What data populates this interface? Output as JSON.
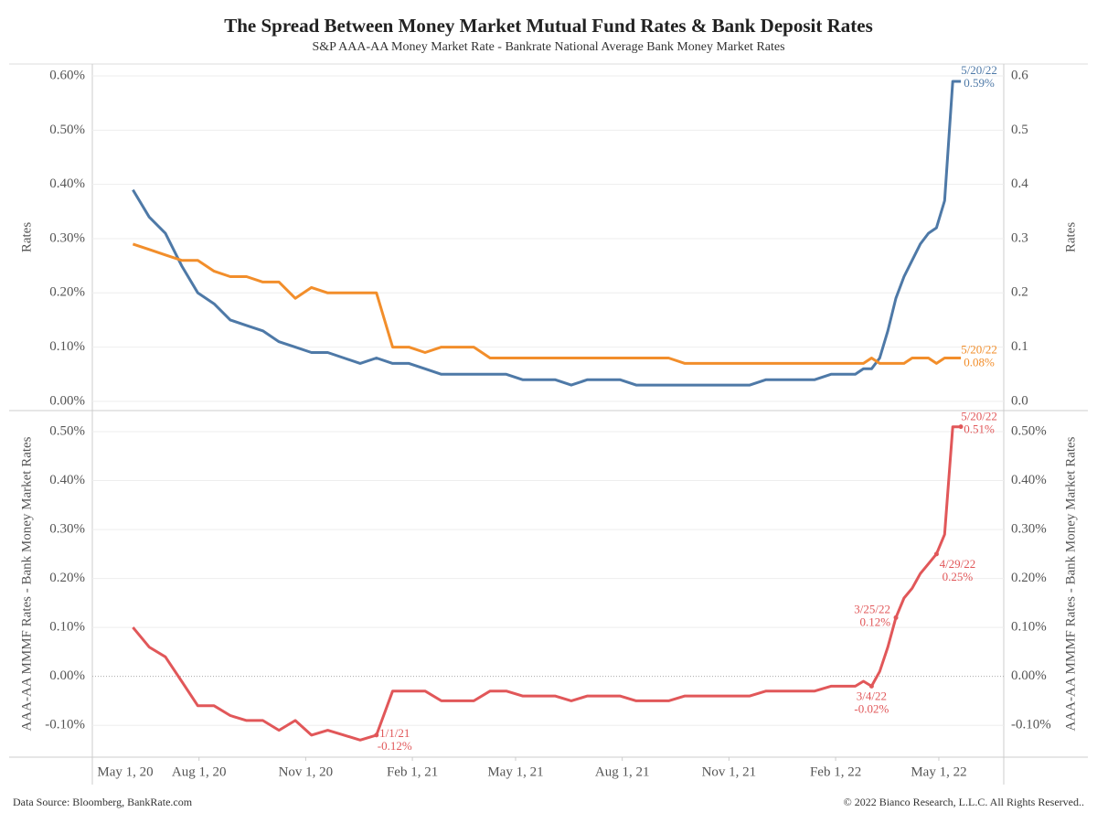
{
  "title": "The Spread Between Money Market Mutual Fund Rates & Bank Deposit Rates",
  "subtitle": "S&P AAA-AA Money Market Rate - Bankrate National Average Bank Money Market Rates",
  "source": "Data Source: Bloomberg, BankRate.com",
  "copyright": "© 2022 Bianco Research, L.L.C. All Rights Reserved..",
  "chart_data": [
    {
      "type": "line",
      "y_label": "Rates",
      "y2_label": "Rates",
      "x": [
        "2020-06-05",
        "2020-06-19",
        "2020-07-03",
        "2020-07-17",
        "2020-07-31",
        "2020-08-14",
        "2020-08-28",
        "2020-09-11",
        "2020-09-25",
        "2020-10-09",
        "2020-10-23",
        "2020-11-06",
        "2020-11-20",
        "2020-12-04",
        "2020-12-18",
        "2021-01-01",
        "2021-01-15",
        "2021-01-29",
        "2021-02-12",
        "2021-02-26",
        "2021-03-12",
        "2021-03-26",
        "2021-04-09",
        "2021-04-23",
        "2021-05-07",
        "2021-05-21",
        "2021-06-04",
        "2021-06-18",
        "2021-07-02",
        "2021-07-16",
        "2021-07-30",
        "2021-08-13",
        "2021-08-27",
        "2021-09-10",
        "2021-09-24",
        "2021-10-08",
        "2021-10-22",
        "2021-11-05",
        "2021-11-19",
        "2021-12-03",
        "2021-12-17",
        "2021-12-31",
        "2022-01-14",
        "2022-01-28",
        "2022-02-04",
        "2022-02-11",
        "2022-02-18",
        "2022-02-25",
        "2022-03-04",
        "2022-03-11",
        "2022-03-18",
        "2022-03-25",
        "2022-04-01",
        "2022-04-08",
        "2022-04-15",
        "2022-04-22",
        "2022-04-29",
        "2022-05-06",
        "2022-05-13",
        "2022-05-20"
      ],
      "xlim": [
        "2020-05-01",
        "2022-06-26"
      ],
      "ylim": [
        -0.017,
        0.622
      ],
      "yticks": [
        {
          "value": 0,
          "label": "0.00%"
        },
        {
          "value": 0.1,
          "label": "0.10%"
        },
        {
          "value": 0.2,
          "label": "0.20%"
        },
        {
          "value": 0.3,
          "label": "0.30%"
        },
        {
          "value": 0.4,
          "label": "0.40%"
        },
        {
          "value": 0.5,
          "label": "0.50%"
        },
        {
          "value": 0.6,
          "label": "0.60%"
        }
      ],
      "y2lim": [
        -0.017,
        0.622
      ],
      "y2ticks": [
        {
          "value": 0,
          "label": "0.0"
        },
        0.1,
        0.2,
        0.3,
        0.4,
        0.5,
        0.6
      ],
      "grid": true,
      "series": [
        {
          "color": "#4e79a7",
          "values": [
            0.39,
            0.34,
            0.31,
            0.25,
            0.2,
            0.18,
            0.15,
            0.14,
            0.13,
            0.11,
            0.1,
            0.09,
            0.09,
            0.08,
            0.07,
            0.08,
            0.07,
            0.07,
            0.06,
            0.05,
            0.05,
            0.05,
            0.05,
            0.05,
            0.04,
            0.04,
            0.04,
            0.03,
            0.04,
            0.04,
            0.04,
            0.03,
            0.03,
            0.03,
            0.03,
            0.03,
            0.03,
            0.03,
            0.03,
            0.04,
            0.04,
            0.04,
            0.04,
            0.05,
            0.05,
            0.05,
            0.05,
            0.06,
            0.06,
            0.08,
            0.13,
            0.19,
            0.23,
            0.26,
            0.29,
            0.31,
            0.32,
            0.37,
            0.59,
            0.59
          ],
          "annotations": [
            {
              "x": "2022-05-20",
              "label": "5/20/22",
              "value_label": "0.59%"
            }
          ]
        },
        {
          "color": "#f28e2b",
          "values": [
            0.29,
            0.28,
            0.27,
            0.26,
            0.26,
            0.24,
            0.23,
            0.23,
            0.22,
            0.22,
            0.19,
            0.21,
            0.2,
            0.2,
            0.2,
            0.2,
            0.1,
            0.1,
            0.09,
            0.1,
            0.1,
            0.1,
            0.08,
            0.08,
            0.08,
            0.08,
            0.08,
            0.08,
            0.08,
            0.08,
            0.08,
            0.08,
            0.08,
            0.08,
            0.07,
            0.07,
            0.07,
            0.07,
            0.07,
            0.07,
            0.07,
            0.07,
            0.07,
            0.07,
            0.07,
            0.07,
            0.07,
            0.07,
            0.08,
            0.07,
            0.07,
            0.07,
            0.07,
            0.08,
            0.08,
            0.08,
            0.07,
            0.08,
            0.08,
            0.08
          ],
          "annotations": [
            {
              "x": "2022-05-20",
              "label": "5/20/22",
              "value_label": "0.08%"
            }
          ]
        }
      ]
    },
    {
      "type": "line",
      "y_label": "AAA-AA MMMF Rates - Bank Money Market Rates",
      "y2_label": "AAA-AA MMMF Rates - Bank Money Market Rates",
      "x": [
        "2020-06-05",
        "2020-06-19",
        "2020-07-03",
        "2020-07-17",
        "2020-07-31",
        "2020-08-14",
        "2020-08-28",
        "2020-09-11",
        "2020-09-25",
        "2020-10-09",
        "2020-10-23",
        "2020-11-06",
        "2020-11-20",
        "2020-12-04",
        "2020-12-18",
        "2021-01-01",
        "2021-01-15",
        "2021-01-29",
        "2021-02-12",
        "2021-02-26",
        "2021-03-12",
        "2021-03-26",
        "2021-04-09",
        "2021-04-23",
        "2021-05-07",
        "2021-05-21",
        "2021-06-04",
        "2021-06-18",
        "2021-07-02",
        "2021-07-16",
        "2021-07-30",
        "2021-08-13",
        "2021-08-27",
        "2021-09-10",
        "2021-09-24",
        "2021-10-08",
        "2021-10-22",
        "2021-11-05",
        "2021-11-19",
        "2021-12-03",
        "2021-12-17",
        "2021-12-31",
        "2022-01-14",
        "2022-01-28",
        "2022-02-04",
        "2022-02-11",
        "2022-02-18",
        "2022-02-25",
        "2022-03-04",
        "2022-03-11",
        "2022-03-18",
        "2022-03-25",
        "2022-04-01",
        "2022-04-08",
        "2022-04-15",
        "2022-04-22",
        "2022-04-29",
        "2022-05-06",
        "2022-05-13",
        "2022-05-20"
      ],
      "xlim": [
        "2020-05-01",
        "2022-06-26"
      ],
      "xticks": [
        {
          "value": "2020-05-01",
          "label": "May 1, 20"
        },
        {
          "value": "2020-08-01",
          "label": "Aug 1, 20"
        },
        {
          "value": "2020-11-01",
          "label": "Nov 1, 20"
        },
        {
          "value": "2021-02-01",
          "label": "Feb 1, 21"
        },
        {
          "value": "2021-05-01",
          "label": "May 1, 21"
        },
        {
          "value": "2021-08-01",
          "label": "Aug 1, 21"
        },
        {
          "value": "2021-11-01",
          "label": "Nov 1, 21"
        },
        {
          "value": "2022-02-01",
          "label": "Feb 1, 22"
        },
        {
          "value": "2022-05-01",
          "label": "May 1, 22"
        }
      ],
      "ylim": [
        -0.165,
        0.543
      ],
      "yticks": [
        {
          "value": -0.1,
          "label": "-0.10%"
        },
        {
          "value": 0,
          "label": "0.00%"
        },
        {
          "value": 0.1,
          "label": "0.10%"
        },
        {
          "value": 0.2,
          "label": "0.20%"
        },
        {
          "value": 0.3,
          "label": "0.30%"
        },
        {
          "value": 0.4,
          "label": "0.40%"
        },
        {
          "value": 0.5,
          "label": "0.50%"
        }
      ],
      "y2lim": [
        -0.165,
        0.543
      ],
      "y2ticks": [
        {
          "value": -0.1,
          "label": "-0.10%"
        },
        {
          "value": 0,
          "label": "0.00%"
        },
        {
          "value": 0.1,
          "label": "0.10%"
        },
        {
          "value": 0.2,
          "label": "0.20%"
        },
        {
          "value": 0.3,
          "label": "0.30%"
        },
        {
          "value": 0.4,
          "label": "0.40%"
        },
        {
          "value": 0.5,
          "label": "0.50%"
        }
      ],
      "grid": true,
      "series": [
        {
          "color": "#e15759",
          "annotation_markers": true,
          "values": [
            0.1,
            0.06,
            0.04,
            -0.01,
            -0.06,
            -0.06,
            -0.08,
            -0.09,
            -0.09,
            -0.11,
            -0.09,
            -0.12,
            -0.11,
            -0.12,
            -0.13,
            -0.12,
            -0.03,
            -0.03,
            -0.03,
            -0.05,
            -0.05,
            -0.05,
            -0.03,
            -0.03,
            -0.04,
            -0.04,
            -0.04,
            -0.05,
            -0.04,
            -0.04,
            -0.04,
            -0.05,
            -0.05,
            -0.05,
            -0.04,
            -0.04,
            -0.04,
            -0.04,
            -0.04,
            -0.03,
            -0.03,
            -0.03,
            -0.03,
            -0.02,
            -0.02,
            -0.02,
            -0.02,
            -0.01,
            -0.02,
            0.01,
            0.06,
            0.12,
            0.16,
            0.18,
            0.21,
            0.23,
            0.25,
            0.29,
            0.51,
            0.51
          ],
          "annotations": [
            {
              "x": "2021-01-01",
              "label": "1/1/21",
              "value_label": "-0.12%"
            },
            {
              "x": "2022-03-04",
              "label": "3/4/22",
              "value_label": "-0.02%"
            },
            {
              "x": "2022-03-25",
              "label": "3/25/22",
              "value_label": "0.12%"
            },
            {
              "x": "2022-04-29",
              "label": "4/29/22",
              "value_label": "0.25%"
            },
            {
              "x": "2022-05-20",
              "label": "5/20/22",
              "value_label": "0.51%"
            }
          ]
        }
      ]
    }
  ]
}
